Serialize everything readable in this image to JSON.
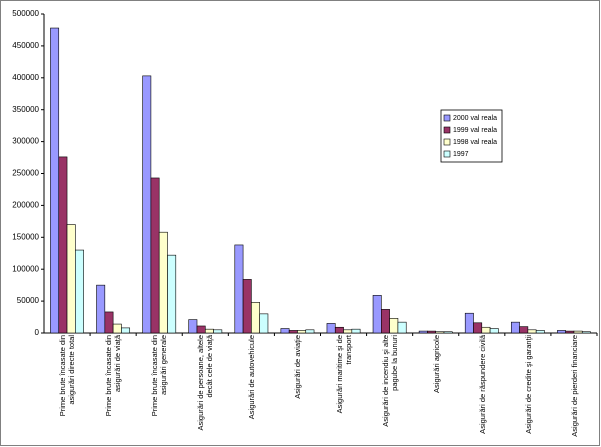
{
  "chart_data": {
    "type": "bar",
    "categories": [
      "Prime brute încasate din asigurări directe total",
      "Prime brute încasate din asigurări de viaţă",
      "Prime brute încasate din asigurări generale",
      "Asigurări de persoane, altele decât cele de viaţă",
      "Asigurări de autovehicule",
      "Asigurări de aviaţie",
      "Asigurări maritime şi de transport",
      "Asigurări de incendiu şi alte pagube la bunuri",
      "Asigurări agricole",
      "Asigurări de răspundere civilă",
      "Asigurări de credite şi garanţii",
      "Asigurări de pierderi financiare"
    ],
    "series": [
      {
        "name": "2000 val reala",
        "color": "#9999ff",
        "values": [
          478000,
          75000,
          403000,
          21000,
          138000,
          7000,
          15000,
          59000,
          3000,
          31000,
          17000,
          4000
        ]
      },
      {
        "name": "1999 val reala",
        "color": "#993366",
        "values": [
          276000,
          33000,
          243000,
          11000,
          84000,
          4000,
          9000,
          37000,
          3000,
          16000,
          10000,
          3000
        ]
      },
      {
        "name": "1998 val reala",
        "color": "#ffffcc",
        "values": [
          170000,
          14000,
          158000,
          6000,
          48000,
          4000,
          5000,
          23000,
          2000,
          9000,
          5000,
          3000
        ]
      },
      {
        "name": "1997",
        "color": "#ccffff",
        "values": [
          130000,
          8000,
          122000,
          5000,
          30000,
          5000,
          6000,
          17000,
          2000,
          7000,
          4000,
          2000
        ]
      }
    ],
    "ylim": [
      0,
      500000
    ],
    "yticks": [
      0,
      50000,
      100000,
      150000,
      200000,
      250000,
      300000,
      350000,
      400000,
      450000,
      500000
    ],
    "grid": false,
    "legend": "right"
  }
}
